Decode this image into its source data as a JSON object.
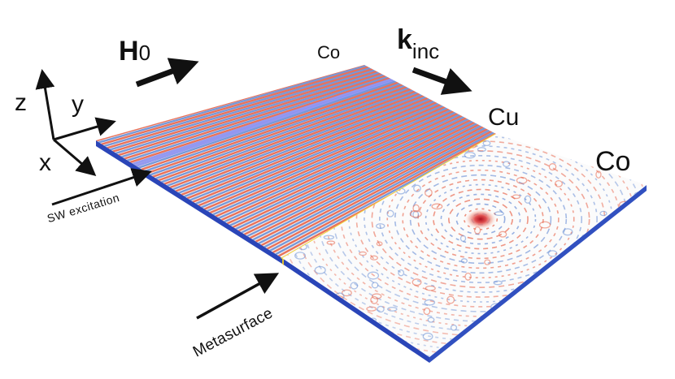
{
  "axes": {
    "z_label": "z",
    "y_label": "y",
    "x_label": "x"
  },
  "field": {
    "symbol": "H",
    "subscript": "0"
  },
  "wavevector": {
    "symbol": "k",
    "subscript": "inc"
  },
  "materials": {
    "left_slab": "Co",
    "interface": "Cu",
    "right_slab": "Co"
  },
  "annotations": {
    "excitation": "SW excitation",
    "metasurface": "Metasurface"
  },
  "colors": {
    "wave_positive": "#e8644a",
    "wave_negative": "#6a8fd6",
    "wave_source": "#8a8ff0",
    "slab_edge": "#2a45b8",
    "interface": "#f2d23a",
    "background": "#ffffff"
  },
  "icons": [
    "axis-arrow",
    "field-direction-arrow",
    "wave-vector-arrow",
    "excitation-arrow",
    "metasurface-arrow"
  ]
}
